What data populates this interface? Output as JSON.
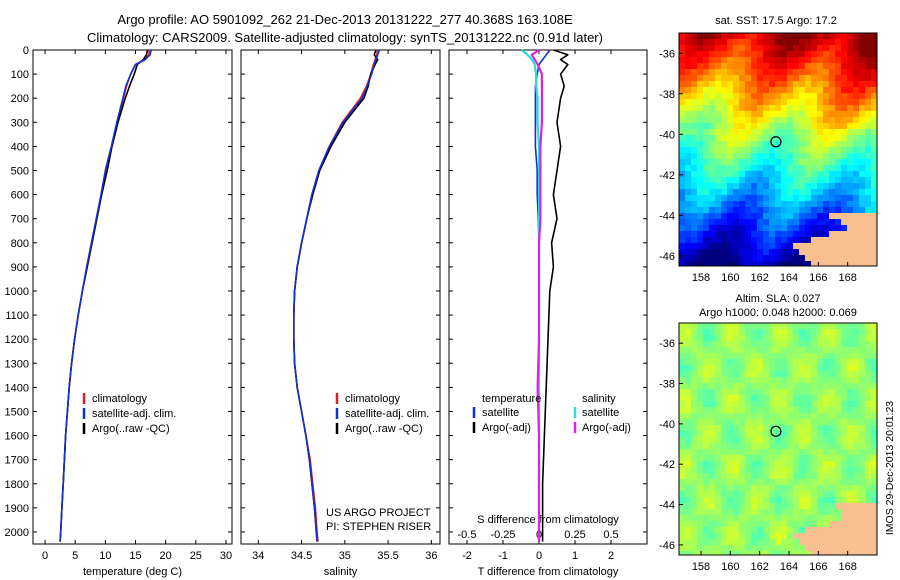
{
  "title_line1": "Argo profile: AO 5901092_262 21-Dec-2013 20131222_277 40.368S 163.108E",
  "title_line2": "Climatology: CARS2009. Satellite-adjusted climatology: synTS_20131222.nc (0.91d later)",
  "watermark": "IMOS 29-Dec-2013 20:01:23",
  "colors": {
    "climatology": "#e02020",
    "satellite": "#1030d0",
    "argo": "#000000",
    "sal_sat": "#20e0e0",
    "sal_argo": "#e020e0",
    "land": "#f8c090"
  },
  "chart_data": [
    {
      "type": "line",
      "panel": "temperature",
      "xlabel": "temperature (deg C)",
      "ylabel": "",
      "xlim": [
        -2,
        31
      ],
      "ylim": [
        2050,
        0
      ],
      "xticks": [
        "0",
        "5",
        "10",
        "15",
        "20",
        "25",
        "30"
      ],
      "yticks": [
        "0",
        "100",
        "200",
        "300",
        "400",
        "500",
        "600",
        "700",
        "800",
        "900",
        "1000",
        "1100",
        "1200",
        "1300",
        "1400",
        "1500",
        "1600",
        "1700",
        "1800",
        "1900",
        "2000"
      ],
      "legend": [
        "climatology",
        "satellite-adj. clim.",
        "Argo(..raw -QC)"
      ],
      "depth": [
        0,
        20,
        40,
        60,
        100,
        150,
        200,
        300,
        400,
        500,
        600,
        700,
        800,
        900,
        1000,
        1100,
        1200,
        1300,
        1400,
        1500,
        1600,
        1700,
        1800,
        1900,
        2000,
        2040
      ],
      "series": [
        {
          "name": "climatology",
          "values": [
            17.3,
            17.2,
            16.5,
            15.0,
            14.2,
            13.5,
            13.0,
            12.0,
            11.0,
            10.0,
            9.3,
            8.5,
            7.7,
            6.9,
            6.2,
            5.5,
            4.9,
            4.4,
            4.0,
            3.7,
            3.4,
            3.2,
            3.0,
            2.8,
            2.6,
            2.5
          ]
        },
        {
          "name": "satellite-adj. clim.",
          "values": [
            17.6,
            17.4,
            16.6,
            15.0,
            14.2,
            13.4,
            12.9,
            11.9,
            11.0,
            10.0,
            9.3,
            8.5,
            7.7,
            6.9,
            6.2,
            5.5,
            4.9,
            4.4,
            4.0,
            3.7,
            3.4,
            3.2,
            3.0,
            2.8,
            2.6,
            2.5
          ]
        },
        {
          "name": "Argo(..raw -QC)",
          "values": [
            17.0,
            16.8,
            16.3,
            15.3,
            14.8,
            14.0,
            13.3,
            12.1,
            11.1,
            10.3,
            9.4,
            8.6,
            7.8,
            7.0,
            6.2,
            5.5,
            4.9,
            4.4,
            4.0,
            3.7,
            3.4,
            3.2,
            3.0,
            2.8,
            2.6,
            2.5
          ]
        }
      ]
    },
    {
      "type": "line",
      "panel": "salinity",
      "xlabel": "salinity",
      "xlim": [
        33.8,
        36.1
      ],
      "ylim": [
        2050,
        0
      ],
      "xticks": [
        "34",
        "34.5",
        "35",
        "35.5",
        "36"
      ],
      "legend": [
        "climatology",
        "satellite-adj. clim.",
        "Argo(..raw -QC)"
      ],
      "annotation": [
        "US ARGO PROJECT",
        "PI: STEPHEN RISER"
      ],
      "depth": [
        0,
        20,
        40,
        60,
        100,
        150,
        200,
        300,
        400,
        500,
        600,
        700,
        800,
        900,
        1000,
        1100,
        1200,
        1300,
        1400,
        1500,
        1600,
        1700,
        1800,
        1900,
        2000,
        2040
      ],
      "series": [
        {
          "name": "climatology",
          "values": [
            35.38,
            35.37,
            35.35,
            35.33,
            35.3,
            35.25,
            35.18,
            34.97,
            34.82,
            34.7,
            34.62,
            34.56,
            34.5,
            34.45,
            34.42,
            34.41,
            34.41,
            34.42,
            34.45,
            34.5,
            34.55,
            34.6,
            34.63,
            34.66,
            34.68,
            34.69
          ]
        },
        {
          "name": "satellite-adj. clim.",
          "values": [
            35.4,
            35.38,
            35.36,
            35.34,
            35.31,
            35.26,
            35.2,
            34.98,
            34.82,
            34.7,
            34.62,
            34.56,
            34.5,
            34.45,
            34.42,
            34.41,
            34.41,
            34.42,
            34.45,
            34.5,
            34.55,
            34.59,
            34.62,
            34.65,
            34.67,
            34.68
          ]
        },
        {
          "name": "Argo(..raw -QC)",
          "values": [
            35.36,
            35.34,
            35.38,
            35.35,
            35.3,
            35.27,
            35.22,
            35.0,
            34.84,
            34.71,
            34.63,
            34.56,
            34.5,
            34.45,
            34.42,
            34.41,
            34.41,
            34.42,
            34.45,
            34.5,
            34.55,
            34.59,
            34.62,
            34.65,
            34.67,
            34.68
          ]
        }
      ]
    },
    {
      "type": "line",
      "panel": "difference",
      "xlabel": "T difference from climatology",
      "xlabel_top": "S difference from climatology",
      "xlim": [
        -2.5,
        3.0
      ],
      "ylim": [
        2050,
        0
      ],
      "xticks": [
        "-2",
        "-1",
        "0",
        "1",
        "2"
      ],
      "xticks_top": [
        "-0.5",
        "-0.25",
        "0",
        "0.25",
        "0.5"
      ],
      "legend_groups": [
        {
          "heading": "temperature",
          "items": [
            "satellite",
            "Argo(-adj)"
          ]
        },
        {
          "heading": "salinity",
          "items": [
            "satellite",
            "Argo(-adj)"
          ]
        }
      ],
      "depth": [
        0,
        20,
        40,
        60,
        100,
        150,
        200,
        300,
        400,
        500,
        600,
        700,
        800,
        900,
        1000,
        1200,
        1400,
        1600,
        1800,
        2000,
        2040
      ],
      "series": [
        {
          "name": "temperature satellite",
          "values": [
            0.3,
            0.2,
            0.1,
            0.0,
            -0.05,
            -0.1,
            -0.1,
            -0.1,
            -0.1,
            -0.05,
            -0.05,
            -0.02,
            0,
            0,
            0,
            0,
            0,
            0,
            0,
            0,
            0
          ]
        },
        {
          "name": "temperature Argo(-adj)",
          "values": [
            0.4,
            0.8,
            0.6,
            0.8,
            0.6,
            0.7,
            0.6,
            0.5,
            0.6,
            0.5,
            0.4,
            0.5,
            0.35,
            0.4,
            0.3,
            0.25,
            0.2,
            0.15,
            0.1,
            0.1,
            0.1
          ]
        },
        {
          "name": "salinity satellite",
          "values": [
            -0.12,
            -0.08,
            -0.05,
            -0.03,
            -0.02,
            -0.02,
            -0.01,
            -0.01,
            0,
            0,
            0,
            0,
            0,
            0,
            0,
            0,
            0,
            0,
            0,
            0,
            0
          ]
        },
        {
          "name": "salinity Argo(-adj)",
          "values": [
            0.0,
            -0.05,
            -0.03,
            -0.01,
            0.02,
            0.02,
            0.02,
            0.02,
            0.01,
            0.01,
            0.01,
            0.01,
            0,
            0,
            0,
            0,
            -0.01,
            0,
            0,
            0,
            0
          ]
        }
      ]
    },
    {
      "type": "heatmap",
      "panel": "sst_map",
      "title": "sat. SST: 17.5 Argo: 17.2",
      "xticks": [
        "158",
        "160",
        "162",
        "164",
        "166",
        "168"
      ],
      "yticks": [
        "-36",
        "-38",
        "-40",
        "-42",
        "-44",
        "-46"
      ],
      "xlim": [
        156.5,
        170
      ],
      "ylim": [
        -46.5,
        -35
      ],
      "argo_position": {
        "lon": 163.108,
        "lat": -40.368
      }
    },
    {
      "type": "heatmap",
      "panel": "sla_map",
      "title_line1": "Altim. SLA: 0.027",
      "title_line2": "Argo h1000: 0.048 h2000: 0.069",
      "xticks": [
        "158",
        "160",
        "162",
        "164",
        "166",
        "168"
      ],
      "yticks": [
        "-36",
        "-38",
        "-40",
        "-42",
        "-44",
        "-46"
      ],
      "xlim": [
        156.5,
        170
      ],
      "ylim": [
        -46.5,
        -35
      ],
      "argo_position": {
        "lon": 163.108,
        "lat": -40.368
      }
    }
  ]
}
